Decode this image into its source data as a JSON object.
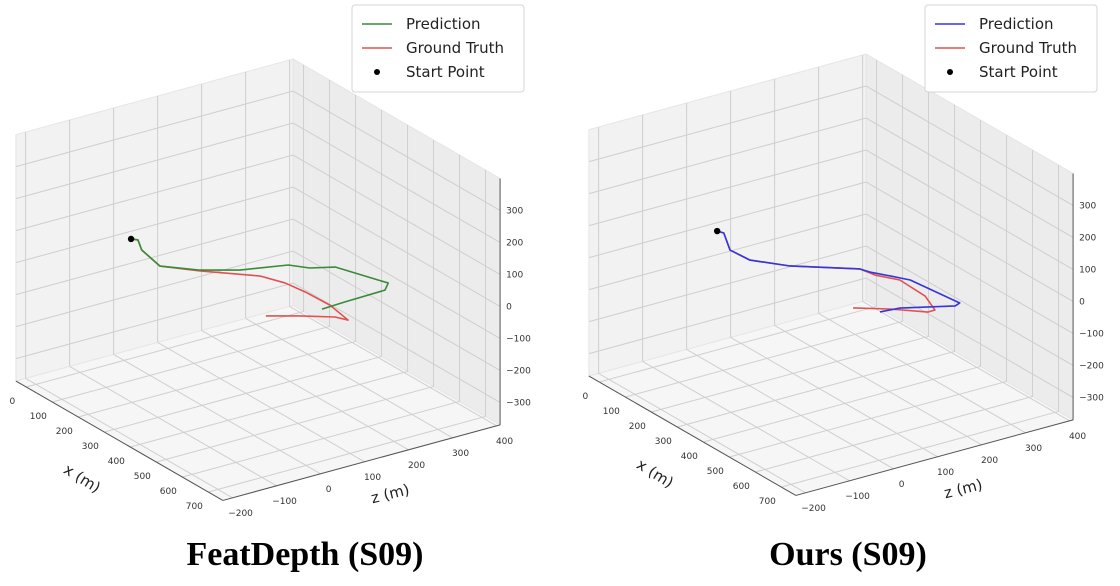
{
  "chart_data": [
    {
      "type": "line",
      "title": "FeatDepth (S09)",
      "xlabel": "x (m)",
      "zlabel": "z (m)",
      "ylabel": "",
      "x_ticks": [
        0,
        100,
        200,
        300,
        400,
        500,
        600,
        700
      ],
      "z_ticks": [
        -200,
        -100,
        0,
        100,
        200,
        300,
        400
      ],
      "y_ticks": [
        -300,
        -200,
        -100,
        0,
        100,
        200,
        300
      ],
      "xlim": [
        -40,
        756
      ],
      "zlim": [
        -222,
        408
      ],
      "ylim": [
        -370,
        400
      ],
      "grid": true,
      "legend_position": "top-right",
      "start_point": {
        "label": "Start Point",
        "color": "#000000",
        "point": [
          -5,
          19,
          0
        ]
      },
      "series": [
        {
          "name": "Prediction",
          "color": "#3a8a3a",
          "points": [
            [
              -5,
              19,
              0
            ],
            [
              8,
              27,
              0
            ],
            [
              58,
              6,
              0
            ],
            [
              153,
              -9,
              0
            ],
            [
              221,
              42,
              0
            ],
            [
              270,
              104,
              0
            ],
            [
              307,
              192,
              0
            ],
            [
              347,
              217,
              0
            ],
            [
              374,
              259,
              0
            ],
            [
              512,
              298,
              0
            ],
            [
              540,
              274,
              0
            ],
            [
              544,
              181,
              0
            ],
            [
              548,
              126,
              0
            ]
          ]
        },
        {
          "name": "Ground Truth",
          "color": "#e05252",
          "points": [
            [
              -5,
              19,
              0
            ],
            [
              8,
              27,
              0
            ],
            [
              58,
              6,
              0
            ],
            [
              153,
              -9,
              0
            ],
            [
              225,
              40,
              0
            ],
            [
              322,
              119,
              0
            ],
            [
              384,
              139,
              0
            ],
            [
              450,
              146,
              0
            ],
            [
              540,
              149,
              0
            ],
            [
              630,
              137,
              0
            ],
            [
              600,
              125,
              0
            ],
            [
              552,
              74,
              0
            ],
            [
              510,
              21,
              0
            ]
          ]
        }
      ]
    },
    {
      "type": "line",
      "title": "Ours (S09)",
      "xlabel": "x (m)",
      "zlabel": "z (m)",
      "ylabel": "",
      "x_ticks": [
        0,
        100,
        200,
        300,
        400,
        500,
        600,
        700
      ],
      "z_ticks": [
        -200,
        -100,
        0,
        100,
        200,
        300,
        400
      ],
      "y_ticks": [
        -300,
        -200,
        -100,
        0,
        100,
        200,
        300
      ],
      "xlim": [
        -40,
        756
      ],
      "zlim": [
        -222,
        408
      ],
      "ylim": [
        -370,
        400
      ],
      "grid": true,
      "legend_position": "top-right",
      "start_point": {
        "label": "Start Point",
        "color": "#000000",
        "point": [
          -2,
          47,
          0
        ]
      },
      "series": [
        {
          "name": "Prediction",
          "color": "#3535e0",
          "points": [
            [
              -2,
              47,
              0
            ],
            [
              15,
              52,
              0
            ],
            [
              100,
              16,
              0
            ],
            [
              170,
              20,
              0
            ],
            [
              246,
              66,
              0
            ],
            [
              346,
              166,
              0
            ],
            [
              372,
              173,
              0
            ],
            [
              415,
              194,
              0
            ],
            [
              458,
              214,
              0
            ],
            [
              623,
              229,
              0
            ],
            [
              631,
              214,
              0
            ],
            [
              572,
              123,
              0
            ],
            [
              565,
              82,
              0
            ]
          ]
        },
        {
          "name": "Ground Truth",
          "color": "#e05252",
          "points": [
            [
              -2,
              47,
              0
            ],
            [
              15,
              52,
              0
            ],
            [
              100,
              16,
              0
            ],
            [
              170,
              20,
              0
            ],
            [
              246,
              66,
              0
            ],
            [
              346,
              166,
              0
            ],
            [
              392,
              173,
              0
            ],
            [
              445,
              198,
              0
            ],
            [
              549,
              194,
              0
            ],
            [
              624,
              172,
              0
            ],
            [
              625,
              156,
              0
            ],
            [
              564,
              105,
              0
            ],
            [
              514,
              51,
              0
            ]
          ]
        }
      ]
    }
  ]
}
